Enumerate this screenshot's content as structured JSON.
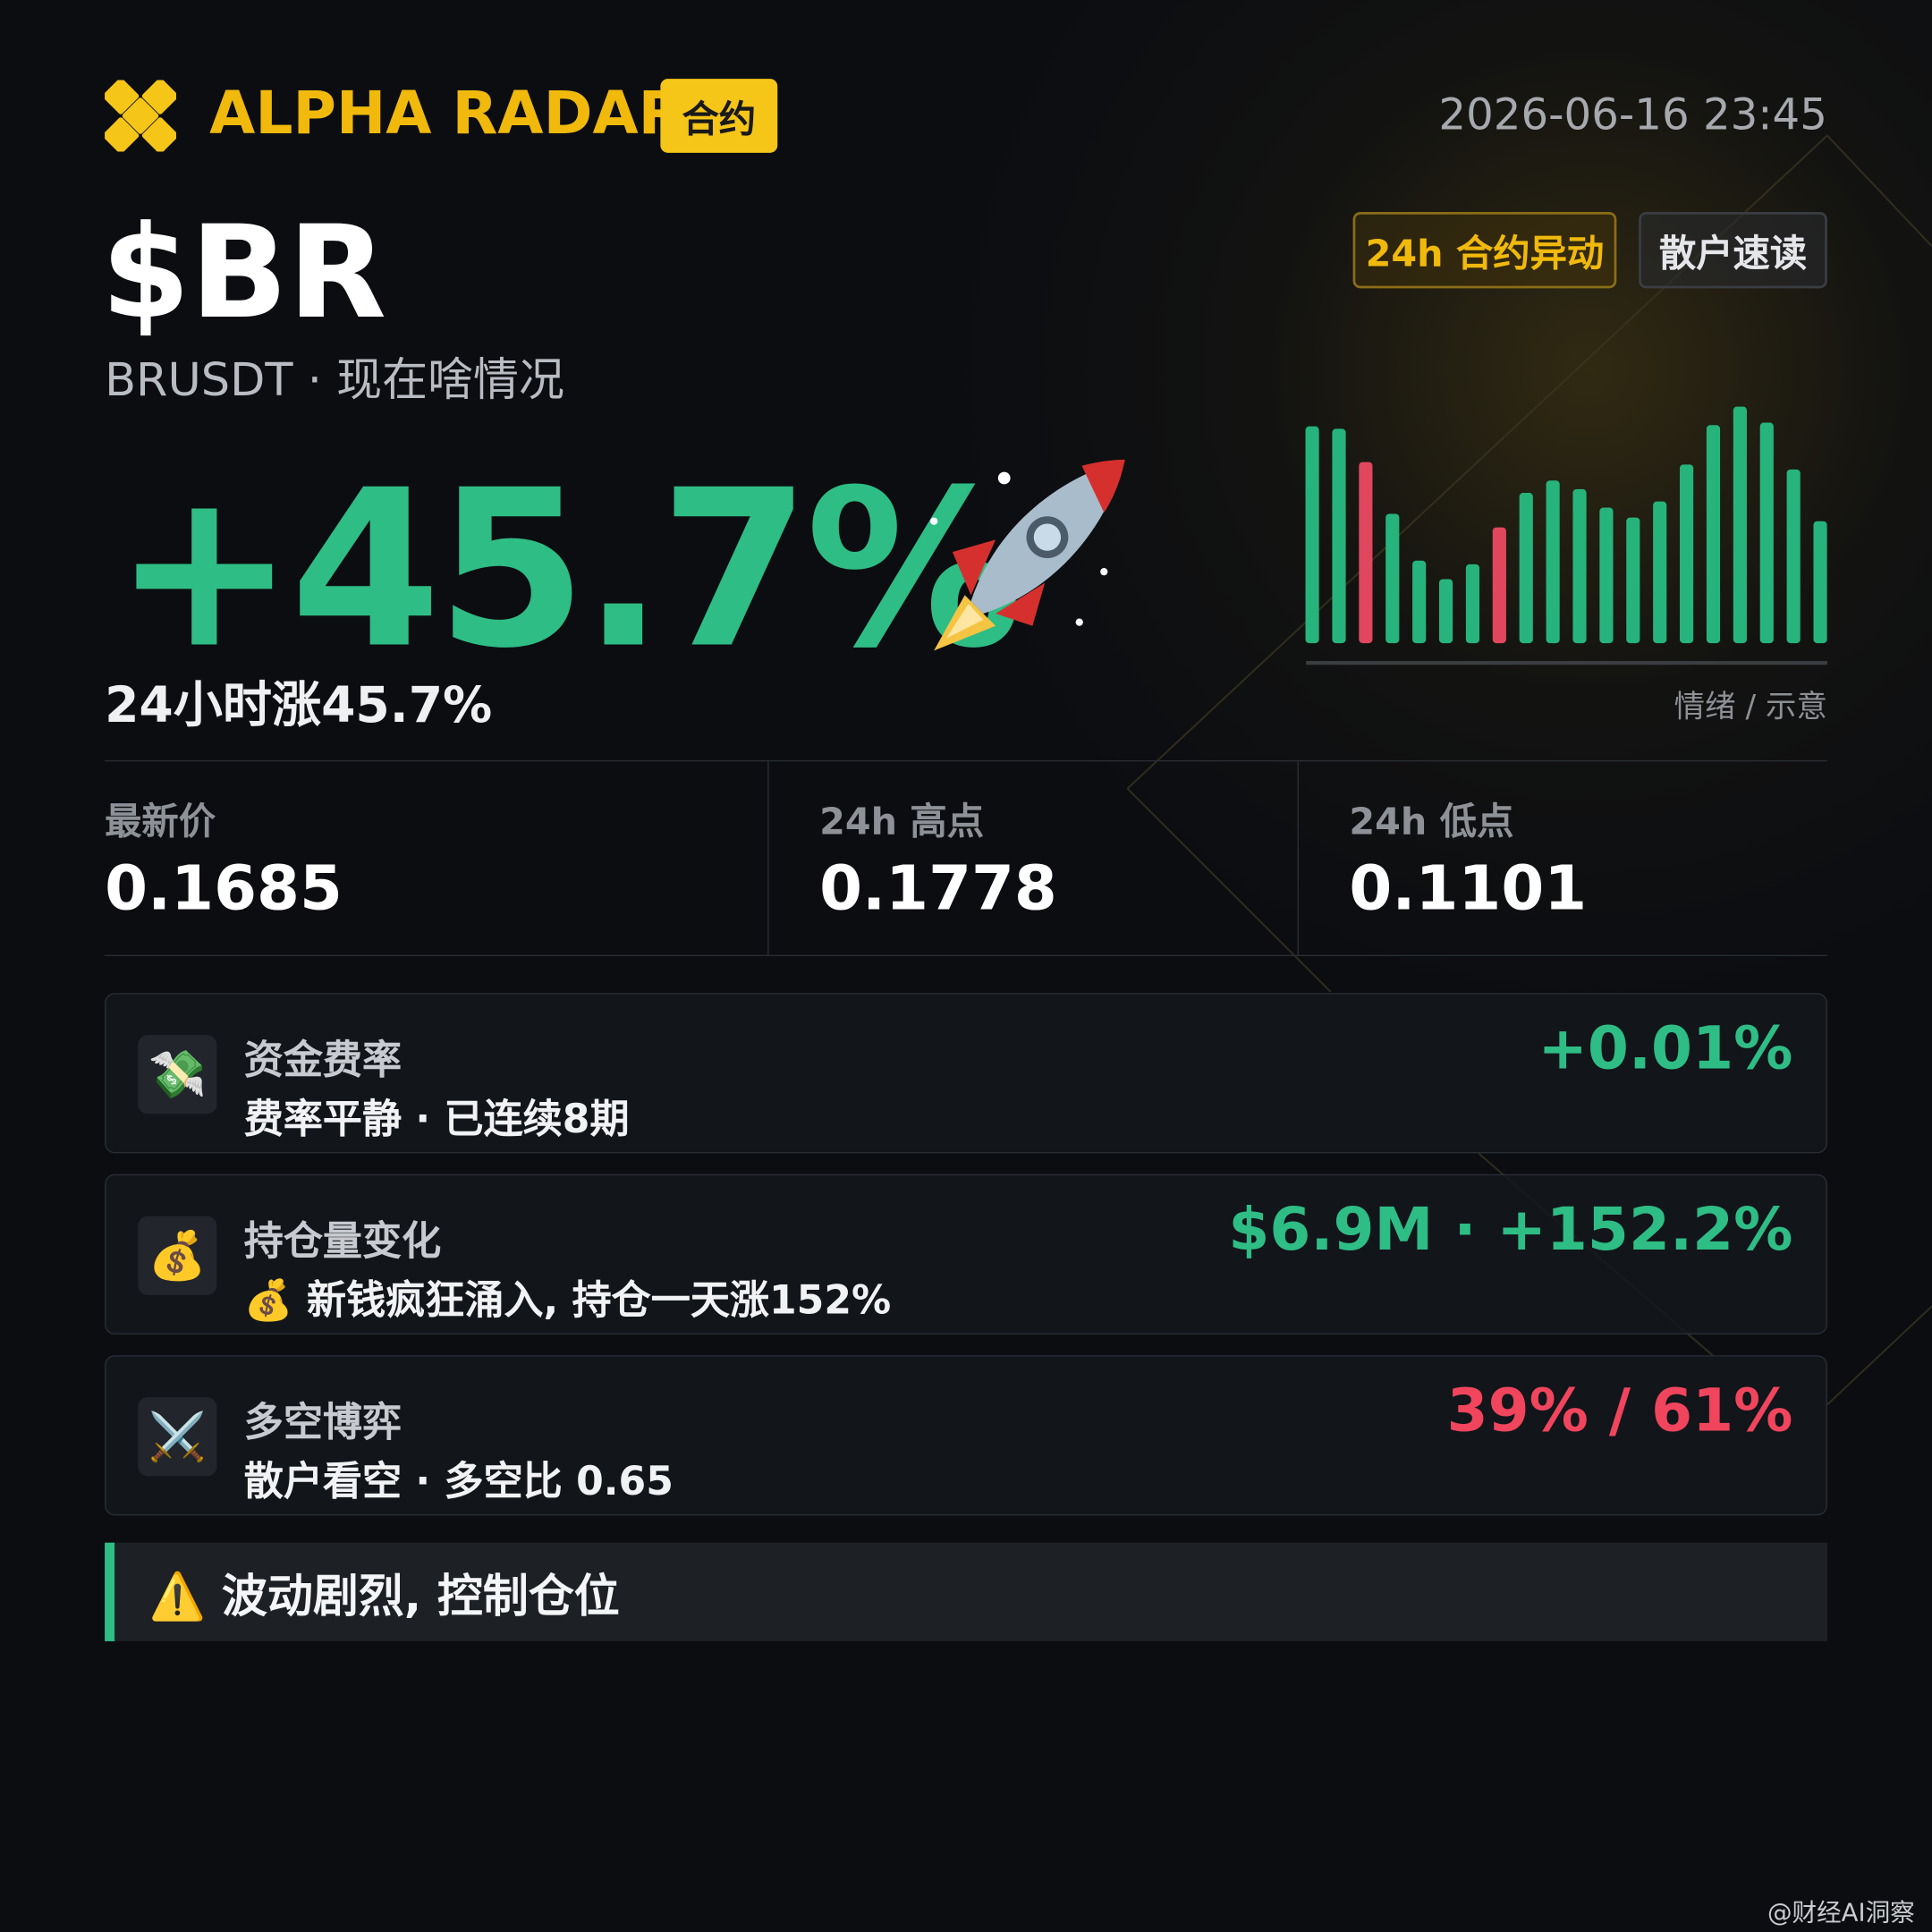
{
  "header": {
    "brand": "ALPHA RADAR",
    "badge": "合约",
    "timestamp": "2026-06-16 23:45"
  },
  "ticker": {
    "symbol": "$BR",
    "pair": "BRUSDT · 现在啥情况",
    "tags": [
      "24h 合约异动",
      "散户速读"
    ],
    "change": "+45.7%",
    "change_caption": "24小时涨45.7%"
  },
  "sentiment_chart": {
    "type": "bar",
    "caption": "情绪 / 示意",
    "values": [
      176,
      174,
      147,
      105,
      67,
      52,
      64,
      94,
      122,
      132,
      125,
      110,
      102,
      115,
      145,
      177,
      192,
      179,
      141,
      99
    ],
    "colors": [
      "#27b47c",
      "#27b47c",
      "#e0475e",
      "#27b47c",
      "#27b47c",
      "#27b47c",
      "#27b47c",
      "#e0475e",
      "#27b47c",
      "#27b47c",
      "#27b47c",
      "#27b47c",
      "#27b47c",
      "#27b47c",
      "#27b47c",
      "#27b47c",
      "#27b47c",
      "#27b47c",
      "#27b47c",
      "#27b47c"
    ]
  },
  "stats": [
    {
      "label": "最新价",
      "value": "0.1685"
    },
    {
      "label": "24h 高点",
      "value": "0.1778"
    },
    {
      "label": "24h 低点",
      "value": "0.1101"
    }
  ],
  "metrics": [
    {
      "icon": "💸",
      "title": "资金费率",
      "subtitle": "费率平静 · 已连续8期",
      "value": "+0.01%",
      "color": "#2ebd85"
    },
    {
      "icon": "💰",
      "title": "持仓量变化",
      "subtitle": "💰 新钱疯狂涌入, 持仓一天涨152%",
      "value": "$6.9M · +152.2%",
      "color": "#2ebd85"
    },
    {
      "icon": "⚔️",
      "title": "多空博弈",
      "subtitle": "散户看空 · 多空比 0.65",
      "value": "39% / 61%",
      "color": "#f0455d"
    }
  ],
  "warning": "⚠️ 波动剧烈, 控制仓位",
  "watermark": "@财经AI洞察"
}
